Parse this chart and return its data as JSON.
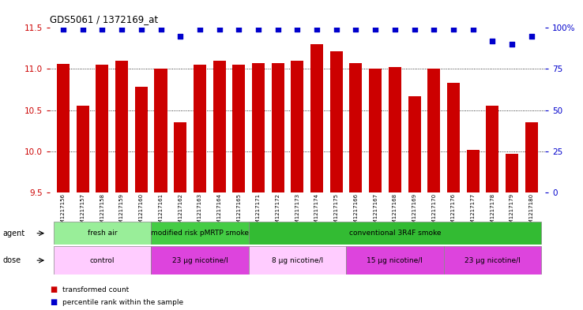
{
  "title": "GDS5061 / 1372169_at",
  "samples": [
    "GSM1217156",
    "GSM1217157",
    "GSM1217158",
    "GSM1217159",
    "GSM1217160",
    "GSM1217161",
    "GSM1217162",
    "GSM1217163",
    "GSM1217164",
    "GSM1217165",
    "GSM1217171",
    "GSM1217172",
    "GSM1217173",
    "GSM1217174",
    "GSM1217175",
    "GSM1217166",
    "GSM1217167",
    "GSM1217168",
    "GSM1217169",
    "GSM1217170",
    "GSM1217176",
    "GSM1217177",
    "GSM1217178",
    "GSM1217179",
    "GSM1217180"
  ],
  "bar_values": [
    11.06,
    10.55,
    11.05,
    11.1,
    10.78,
    11.0,
    10.35,
    11.05,
    11.1,
    11.05,
    11.07,
    11.07,
    11.1,
    11.3,
    11.22,
    11.07,
    11.0,
    11.02,
    10.67,
    11.0,
    10.83,
    10.02,
    10.55,
    9.97,
    10.35
  ],
  "percentile_values": [
    99,
    99,
    99,
    99,
    99,
    99,
    95,
    99,
    99,
    99,
    99,
    99,
    99,
    99,
    99,
    99,
    99,
    99,
    99,
    99,
    99,
    99,
    92,
    90,
    95
  ],
  "ymin": 9.5,
  "ymax": 11.5,
  "yticks": [
    9.5,
    10.0,
    10.5,
    11.0,
    11.5
  ],
  "right_yticks": [
    0,
    25,
    50,
    75,
    100
  ],
  "bar_color": "#cc0000",
  "percentile_color": "#0000cc",
  "agent_groups": [
    {
      "label": "fresh air",
      "start": 0,
      "end": 4,
      "color": "#99ee99"
    },
    {
      "label": "modified risk pMRTP smoke",
      "start": 5,
      "end": 9,
      "color": "#44cc44"
    },
    {
      "label": "conventional 3R4F smoke",
      "start": 10,
      "end": 24,
      "color": "#33bb33"
    }
  ],
  "dose_groups": [
    {
      "label": "control",
      "start": 0,
      "end": 4,
      "color": "#ffccff"
    },
    {
      "label": "23 μg nicotine/l",
      "start": 5,
      "end": 9,
      "color": "#dd44dd"
    },
    {
      "label": "8 μg nicotine/l",
      "start": 10,
      "end": 14,
      "color": "#ffccff"
    },
    {
      "label": "15 μg nicotine/l",
      "start": 15,
      "end": 19,
      "color": "#dd44dd"
    },
    {
      "label": "23 μg nicotine/l",
      "start": 20,
      "end": 24,
      "color": "#dd44dd"
    }
  ],
  "legend_bar_label": "transformed count",
  "legend_pct_label": "percentile rank within the sample",
  "bar_axis_color": "#cc0000",
  "right_axis_color": "#0000cc",
  "plot_bg_color": "#ffffff",
  "fig_bg_color": "#ffffff"
}
